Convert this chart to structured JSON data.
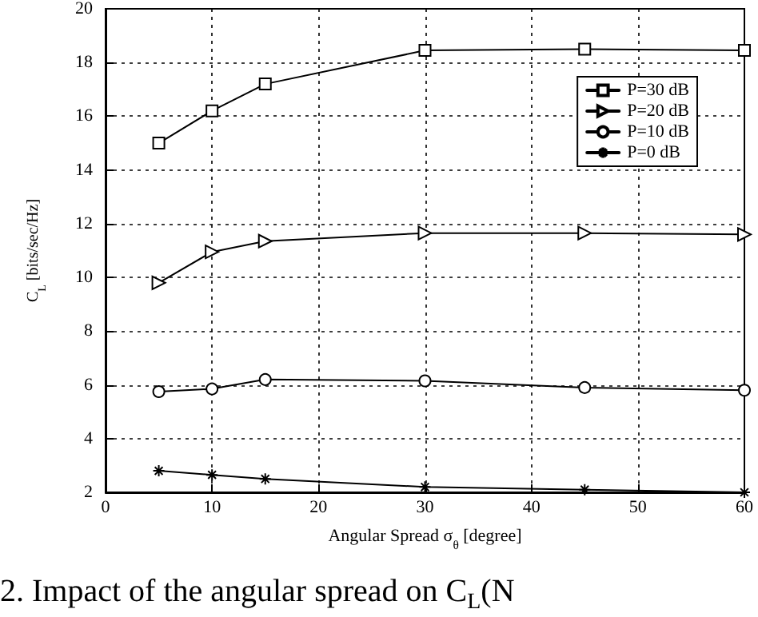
{
  "chart_data": {
    "type": "line",
    "xlabel": "Angular Spread σ$_{θ}$ [degree]",
    "ylabel": "C$_{L}$ [bits/sec/Hz]",
    "annotations": [
      "2. Impact of the angular spread on C$_{L}$(N"
    ],
    "x": [
      5,
      10,
      15,
      30,
      45,
      60
    ],
    "series": [
      {
        "name": "P=30 dB",
        "color": "#000000",
        "marker": "square",
        "values": [
          15.0,
          16.2,
          17.2,
          18.45,
          18.5,
          18.45
        ]
      },
      {
        "name": "P=20 dB",
        "color": "#000000",
        "marker": "triangle",
        "values": [
          9.8,
          10.95,
          11.35,
          11.65,
          11.65,
          11.6
        ]
      },
      {
        "name": "P=10 dB",
        "color": "#000000",
        "marker": "circle",
        "values": [
          5.75,
          5.85,
          6.2,
          6.15,
          5.9,
          5.8
        ]
      },
      {
        "name": "P=0 dB",
        "color": "#000000",
        "marker": "cross",
        "values": [
          2.8,
          2.65,
          2.5,
          2.2,
          2.1,
          2.0
        ]
      }
    ],
    "xlim": [
      0,
      60
    ],
    "xticks": [
      0,
      10,
      20,
      30,
      40,
      50,
      60
    ],
    "ylim": [
      2,
      20
    ],
    "yticks": [
      2,
      4,
      6,
      8,
      10,
      12,
      14,
      16,
      18,
      20
    ],
    "grid": true,
    "legend": "top right",
    "line_style": "solid"
  }
}
